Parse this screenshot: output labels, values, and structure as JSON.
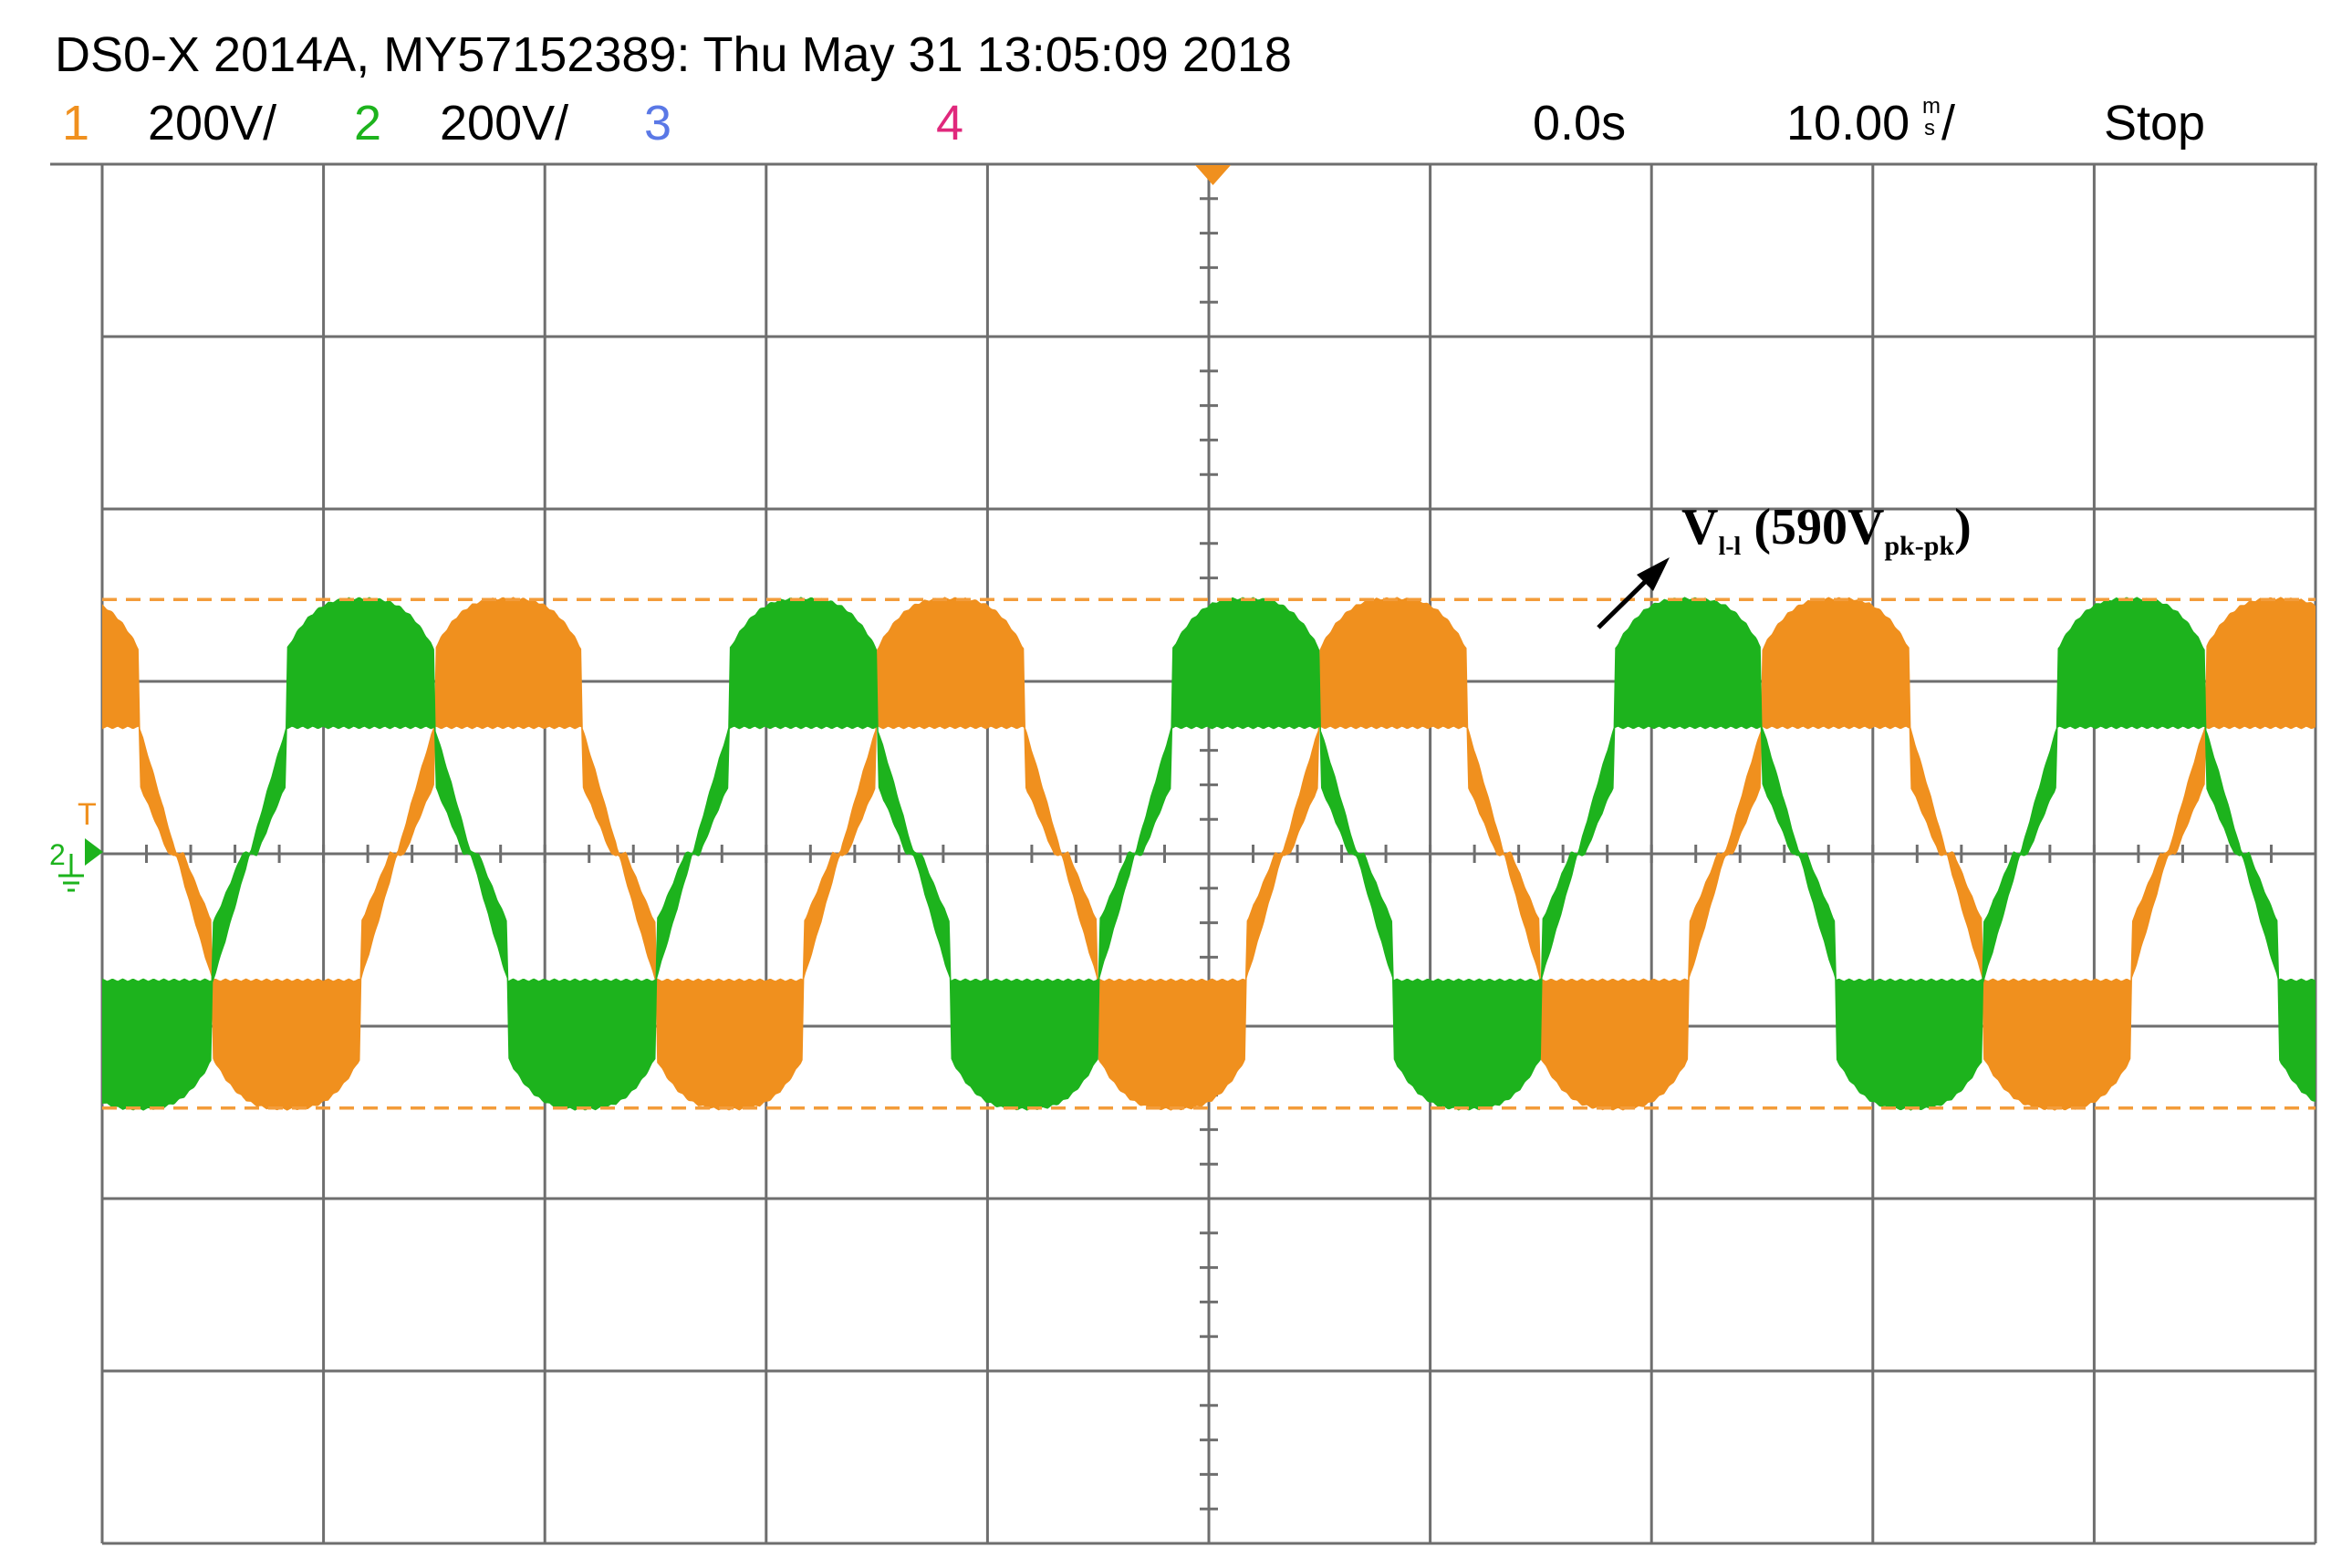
{
  "header": {
    "title": "DS0-X 2014A, MY57152389: Thu May 31 13:05:09 2018",
    "channels": [
      {
        "num": "1",
        "scale": "200V/",
        "color": "#f0901e"
      },
      {
        "num": "2",
        "scale": "200V/",
        "color": "#1db31d"
      },
      {
        "num": "3",
        "scale": "",
        "color": "#5a78e6"
      },
      {
        "num": "4",
        "scale": "",
        "color": "#e0287c"
      }
    ],
    "time_offset": "0.0s",
    "timebase_value": "10.00",
    "timebase_unit_top": "m",
    "timebase_unit_bottom": "s",
    "timebase_suffix": "/",
    "run_state": "Stop"
  },
  "markers": {
    "trigger_level_label": "T",
    "channel_ground_label": "2"
  },
  "annotation": {
    "v": "V",
    "v_sub": "l-l",
    "open": " (590V",
    "pk_sub": "pk-pk",
    "close": ")"
  },
  "colors": {
    "grid": "#6e6e6e",
    "ch1": "#f0901e",
    "ch2": "#1db31d",
    "cursor": "#f39c3a",
    "trigger": "#f0901e"
  },
  "chart_data": {
    "type": "line",
    "x_unit": "ms",
    "y_unit": "V",
    "xlim": [
      -50,
      50
    ],
    "ylim": [
      -800,
      800
    ],
    "x_divisions": 10,
    "y_divisions": 8,
    "volts_per_div": 200,
    "ms_per_div": 10,
    "fundamental_hz": 50,
    "series": [
      {
        "channel": "1",
        "color": "#f0901e",
        "waveform": "three-level stepped sine with PWM switching",
        "peak_v": 295,
        "step_v": 147.5,
        "phase_deg": -60
      },
      {
        "channel": "2",
        "color": "#1db31d",
        "waveform": "three-level stepped sine with PWM switching",
        "peak_v": 295,
        "step_v": 147.5,
        "phase_deg": 60
      }
    ],
    "cursors_v": [
      295,
      -295
    ],
    "annotation_text": "Vl-l (590Vpk-pk)"
  }
}
